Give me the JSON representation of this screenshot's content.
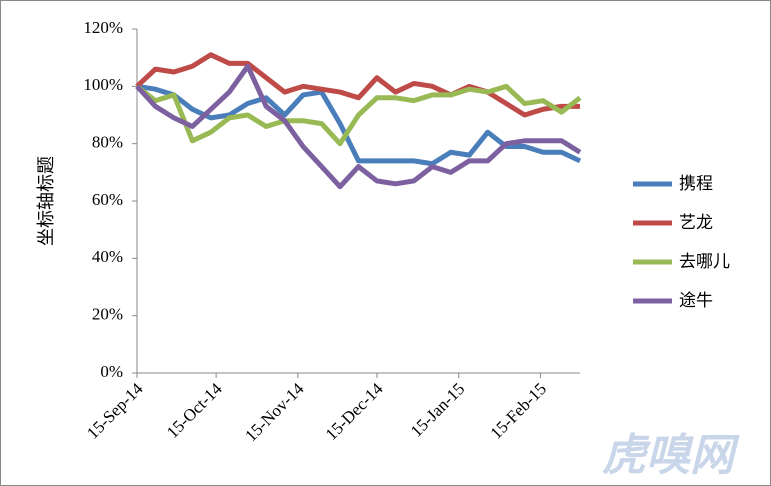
{
  "chart_data": {
    "type": "line",
    "y_axis_title": "坐标轴标题",
    "watermark": "虎嗅网",
    "x": [
      "2014-09-15",
      "2014-09-22",
      "2014-09-29",
      "2014-10-06",
      "2014-10-13",
      "2014-10-20",
      "2014-10-27",
      "2014-11-03",
      "2014-11-10",
      "2014-11-17",
      "2014-11-24",
      "2014-12-01",
      "2014-12-08",
      "2014-12-15",
      "2014-12-22",
      "2014-12-29",
      "2015-01-05",
      "2015-01-12",
      "2015-01-19",
      "2015-01-26",
      "2015-02-02",
      "2015-02-09",
      "2015-02-16",
      "2015-02-23",
      "2015-03-02"
    ],
    "xlim": [
      "2014-09-15",
      "2015-03-02"
    ],
    "xticks": [
      {
        "value": "2014-09-15",
        "label": "15-Sep-14"
      },
      {
        "value": "2014-10-15",
        "label": "15-Oct-14"
      },
      {
        "value": "2014-11-15",
        "label": "15-Nov-14"
      },
      {
        "value": "2014-12-15",
        "label": "15-Dec-14"
      },
      {
        "value": "2015-01-15",
        "label": "15-Jan-15"
      },
      {
        "value": "2015-02-15",
        "label": "15-Feb-15"
      }
    ],
    "ylim": [
      0,
      120
    ],
    "yticks": [
      {
        "value": 0,
        "label": "0%"
      },
      {
        "value": 20,
        "label": "20%"
      },
      {
        "value": 40,
        "label": "40%"
      },
      {
        "value": 60,
        "label": "60%"
      },
      {
        "value": 80,
        "label": "80%"
      },
      {
        "value": 100,
        "label": "100%"
      },
      {
        "value": 120,
        "label": "120%"
      }
    ],
    "legend": "right",
    "series": [
      {
        "name": "携程",
        "color": "#4a7ebb",
        "values": [
          100,
          99,
          97,
          92,
          89,
          90,
          94,
          96,
          90,
          97,
          98,
          87,
          74,
          74,
          74,
          74,
          73,
          77,
          76,
          84,
          79,
          79,
          77,
          77,
          74
        ]
      },
      {
        "name": "艺龙",
        "color": "#be4b48",
        "values": [
          100,
          106,
          105,
          107,
          111,
          108,
          108,
          103,
          98,
          100,
          99,
          98,
          96,
          103,
          98,
          101,
          100,
          97,
          100,
          98,
          94,
          90,
          92,
          93,
          93
        ]
      },
      {
        "name": "去哪儿",
        "color": "#98b954",
        "values": [
          100,
          95,
          97,
          81,
          84,
          89,
          90,
          86,
          88,
          88,
          87,
          80,
          90,
          96,
          96,
          95,
          97,
          97,
          99,
          98,
          100,
          94,
          95,
          91,
          96
        ]
      },
      {
        "name": "途牛",
        "color": "#7d60a0",
        "values": [
          100,
          93,
          89,
          86,
          92,
          98,
          107,
          93,
          88,
          79,
          72,
          65,
          72,
          67,
          66,
          67,
          72,
          70,
          74,
          74,
          80,
          81,
          81,
          81,
          77
        ]
      }
    ]
  }
}
